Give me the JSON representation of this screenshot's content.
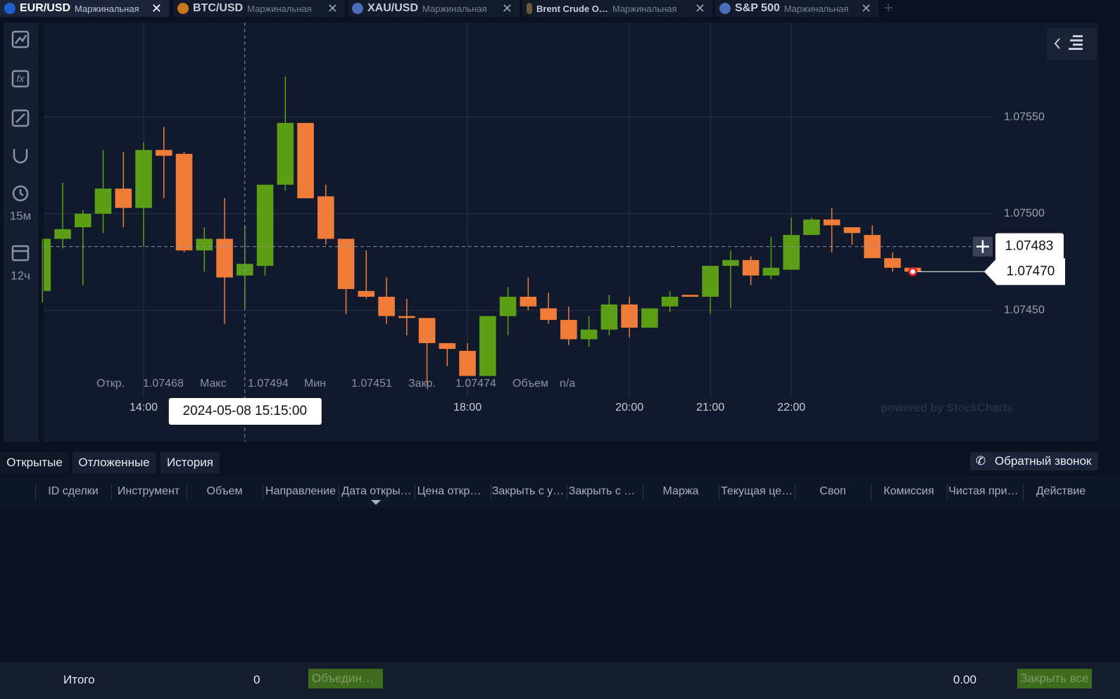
{
  "tabs": [
    {
      "symbol": "EUR/USD",
      "kind": "Маржинальная"
    },
    {
      "symbol": "BTC/USD",
      "kind": "Маржинальная"
    },
    {
      "symbol": "XAU/USD",
      "kind": "Маржинальная"
    },
    {
      "symbol": "Brent Crude O…",
      "kind": "Маржинальная"
    },
    {
      "symbol": "S&P 500",
      "kind": "Маржинальная"
    }
  ],
  "sidebar": {
    "timeframe": "15м",
    "range": "12ч"
  },
  "chart_data": {
    "type": "candlestick",
    "categories": [
      null,
      null,
      null,
      null,
      null,
      null,
      null,
      null,
      null,
      null,
      null,
      null,
      null,
      null,
      null,
      null,
      null,
      null,
      null,
      null,
      null,
      null,
      null,
      null,
      null,
      null,
      null,
      null,
      null,
      null,
      null,
      null,
      null,
      null,
      null,
      null,
      null,
      null,
      null,
      null,
      null,
      null,
      null,
      null
    ],
    "open": [
      1.0746,
      1.07487,
      1.07493,
      1.075,
      1.07513,
      1.07503,
      1.07533,
      1.07531,
      1.07481,
      1.07487,
      1.07468,
      1.07473,
      1.07515,
      1.07547,
      1.07509,
      1.07487,
      1.0746,
      1.07457,
      1.07447,
      1.07446,
      1.07433,
      1.07429,
      1.07416,
      1.07447,
      1.07457,
      1.07451,
      1.07445,
      1.07435,
      1.0744,
      1.07453,
      1.07441,
      1.07452,
      1.07458,
      1.07457,
      1.07473,
      1.07476,
      1.07468,
      1.07471,
      1.07489,
      1.07497,
      1.07493,
      1.07489,
      1.07477,
      1.07472
    ],
    "high": [
      1.07487,
      1.07516,
      1.07502,
      1.07533,
      1.07532,
      1.07537,
      1.07545,
      1.07532,
      1.07493,
      1.07508,
      1.07494,
      1.07515,
      1.07571,
      1.07547,
      1.07515,
      1.07487,
      1.07481,
      1.07467,
      1.07456,
      1.07446,
      1.07433,
      1.07433,
      1.07447,
      1.07462,
      1.07467,
      1.07459,
      1.07452,
      1.07447,
      1.07458,
      1.07457,
      1.07451,
      1.0746,
      1.07458,
      1.07473,
      1.07481,
      1.07478,
      1.07488,
      1.07498,
      1.07498,
      1.07503,
      1.07493,
      1.07494,
      1.0748,
      1.07472
    ],
    "low": [
      1.07454,
      1.07482,
      1.07463,
      1.0749,
      1.07493,
      1.07483,
      1.07508,
      1.0748,
      1.0747,
      1.07443,
      1.07451,
      1.07468,
      1.07512,
      1.07508,
      1.07484,
      1.07448,
      1.07456,
      1.07443,
      1.07437,
      1.07411,
      1.07421,
      1.07416,
      1.07416,
      1.07437,
      1.0745,
      1.07443,
      1.07432,
      1.07431,
      1.07437,
      1.07436,
      1.07441,
      1.07449,
      1.07457,
      1.07448,
      1.07451,
      1.07463,
      1.07466,
      1.07471,
      1.07489,
      1.0748,
      1.07484,
      1.07477,
      1.0747,
      1.07469
    ],
    "close": [
      1.07487,
      1.07492,
      1.075,
      1.07513,
      1.07503,
      1.07533,
      1.0753,
      1.07481,
      1.07487,
      1.07467,
      1.07474,
      1.07515,
      1.07547,
      1.07508,
      1.07487,
      1.07461,
      1.07457,
      1.07447,
      1.07446,
      1.07433,
      1.0743,
      1.07416,
      1.07447,
      1.07457,
      1.07452,
      1.07445,
      1.07435,
      1.0744,
      1.07453,
      1.07441,
      1.07451,
      1.07457,
      1.07457,
      1.07473,
      1.07476,
      1.07468,
      1.07472,
      1.07489,
      1.07497,
      1.07494,
      1.0749,
      1.07477,
      1.07472,
      1.0747
    ],
    "up_color": "#5c9e16",
    "down_color": "#f07c3a",
    "ylim": [
      1.07382,
      1.07599
    ],
    "yticks": [
      {
        "value": 1.0745,
        "label": "1.07450"
      },
      {
        "value": 1.075,
        "label": "1.07500"
      },
      {
        "value": 1.0755,
        "label": "1.07550"
      }
    ],
    "xlim": [
      0.06,
      52.16
    ],
    "xticks": [
      {
        "value": 5,
        "label": "14:00"
      },
      {
        "value": 21,
        "label": "18:00"
      },
      {
        "value": 29,
        "label": "20:00"
      },
      {
        "value": 33,
        "label": "21:00"
      },
      {
        "value": 37,
        "label": "22:00"
      }
    ],
    "grid": true,
    "crosshair": {
      "time": "2024-05-08 15:15:00",
      "price": 1.07483
    },
    "last_price": {
      "value": 1.0747,
      "label": "1.07470"
    },
    "info": {
      "open_label": "Откр.",
      "high_label": "Макс",
      "low_label": "Мин",
      "close_label": "Закр.",
      "volume_label": "Объем",
      "volume": "n/a"
    },
    "watermark": "powered by StockCharts"
  },
  "positions": {
    "tabs": [
      "Открытые",
      "Отложенные",
      "История"
    ],
    "callback": "Обратный звонок",
    "columns": [
      "ID сделки",
      "Инструмент",
      "Объем",
      "Направление",
      "Дата откры…",
      "Цена откр…",
      "Закрыть с у…",
      "Закрыть с …",
      "Маржа",
      "Текущая це…",
      "Своп",
      "Комиссия",
      "Чистая при…",
      "Действие"
    ],
    "footer": {
      "label": "Итого",
      "volume": 0,
      "merge": "Объедин…",
      "total": {
        "value": 0,
        "label": "0.00"
      },
      "close_all": "Закрыть все"
    }
  }
}
